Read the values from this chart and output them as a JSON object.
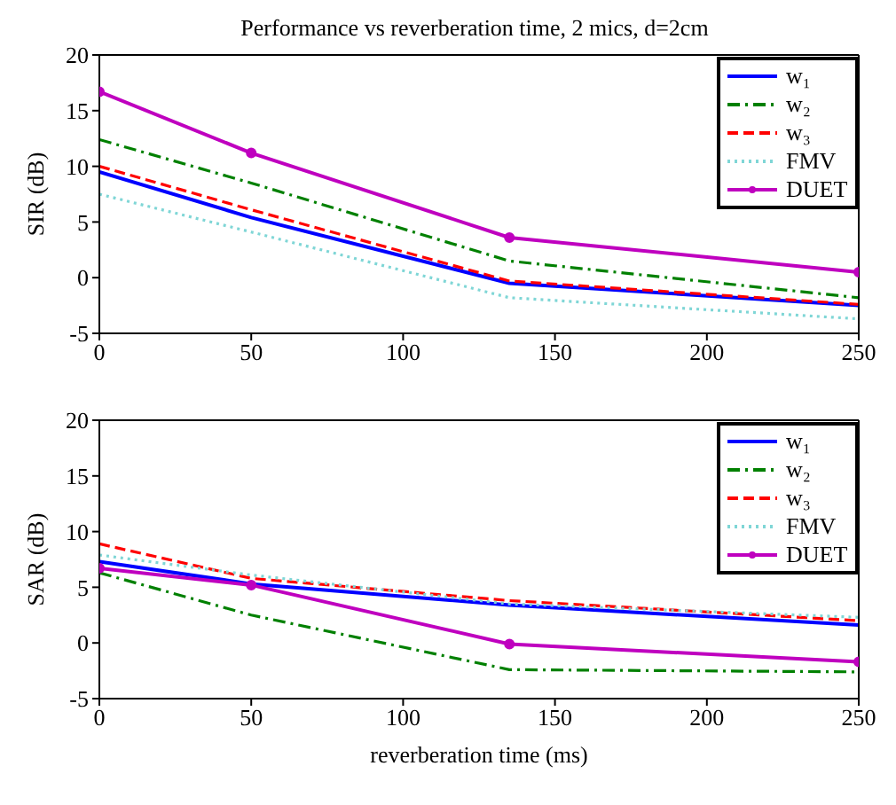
{
  "chart_data": [
    {
      "type": "line",
      "title": "Performance vs reverberation time, 2 mics, d=2cm",
      "ylabel": "SIR (dB)",
      "x": [
        0,
        50,
        135,
        250
      ],
      "xlim": [
        0,
        250
      ],
      "xticks": [
        0,
        50,
        100,
        150,
        200,
        250
      ],
      "ylim": [
        -5,
        20
      ],
      "yticks": [
        -5,
        0,
        5,
        10,
        15,
        20
      ],
      "grid": false,
      "legend": "top right",
      "series": [
        {
          "name": "w₁",
          "color": "#0000ff",
          "values": [
            9.5,
            5.4,
            -0.5,
            -2.5
          ],
          "line_style": "solid",
          "marker": "none"
        },
        {
          "name": "w₂",
          "color": "#008000",
          "values": [
            12.4,
            8.5,
            1.5,
            -1.8
          ],
          "line_style": "dashdot",
          "marker": "none"
        },
        {
          "name": "w₃",
          "color": "#ff0000",
          "values": [
            10,
            6.1,
            -0.3,
            -2.4
          ],
          "line_style": "dashed",
          "marker": "none"
        },
        {
          "name": "FMV",
          "color": "#7fd6d6",
          "values": [
            7.5,
            4.1,
            -1.8,
            -3.7
          ],
          "line_style": "dotted",
          "marker": "none"
        },
        {
          "name": "DUET",
          "color": "#bf00bf",
          "values": [
            16.7,
            11.2,
            3.6,
            0.5
          ],
          "line_style": "solid",
          "marker": "circle"
        }
      ]
    },
    {
      "type": "line",
      "xlabel": "reverberation time (ms)",
      "ylabel": "SAR (dB)",
      "x": [
        0,
        50,
        135,
        250
      ],
      "xlim": [
        0,
        250
      ],
      "xticks": [
        0,
        50,
        100,
        150,
        200,
        250
      ],
      "ylim": [
        -5,
        20
      ],
      "yticks": [
        -5,
        0,
        5,
        10,
        15,
        20
      ],
      "grid": false,
      "legend": "top right",
      "series": [
        {
          "name": "w₁",
          "color": "#0000ff",
          "values": [
            7.3,
            5.3,
            3.4,
            1.6
          ],
          "line_style": "solid",
          "marker": "none"
        },
        {
          "name": "w₂",
          "color": "#008000",
          "values": [
            6.3,
            2.5,
            -2.4,
            -2.6
          ],
          "line_style": "dashdot",
          "marker": "none"
        },
        {
          "name": "w₃",
          "color": "#ff0000",
          "values": [
            8.9,
            5.8,
            3.8,
            2.0
          ],
          "line_style": "dashed",
          "marker": "none"
        },
        {
          "name": "FMV",
          "color": "#7fd6d6",
          "values": [
            7.9,
            6.1,
            3.5,
            2.3
          ],
          "line_style": "dotted",
          "marker": "none"
        },
        {
          "name": "DUET",
          "color": "#bf00bf",
          "values": [
            6.7,
            5.2,
            -0.1,
            -1.7
          ],
          "line_style": "solid",
          "marker": "circle"
        }
      ]
    }
  ]
}
